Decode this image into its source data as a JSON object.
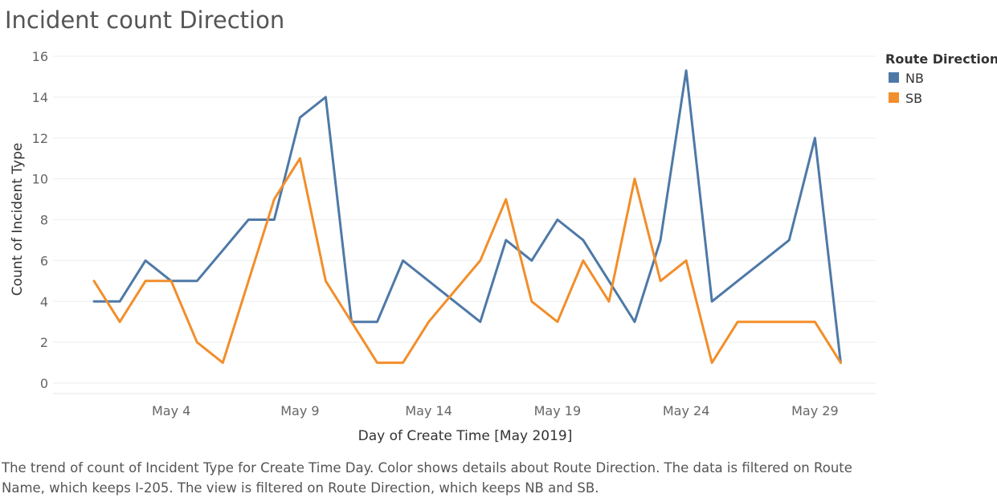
{
  "title": "Incident count Direction",
  "caption": "The trend of count of Incident Type for Create Time Day.  Color shows details about Route Direction. The data is filtered on Route Name, which keeps I-205. The view is filtered on Route Direction, which keeps NB and SB.",
  "chart_data": {
    "type": "line",
    "title": "Incident count Direction",
    "xlabel": "Day of Create Time [May 2019]",
    "ylabel": "Count of Incident Type",
    "x_ticks": [
      "May 4",
      "May 9",
      "May 14",
      "May 19",
      "May 24",
      "May 29"
    ],
    "y_ticks": [
      0,
      2,
      4,
      6,
      8,
      10,
      12,
      14,
      16
    ],
    "ylim": [
      0,
      16
    ],
    "x_days": [
      1,
      2,
      3,
      4,
      5,
      6,
      7,
      8,
      9,
      10,
      11,
      12,
      13,
      14,
      15,
      16,
      17,
      18,
      19,
      20,
      21,
      22,
      23,
      24,
      25,
      26,
      27,
      28,
      29,
      30
    ],
    "grid": true,
    "legend": {
      "title": "Route Direction",
      "position": "right"
    },
    "series": [
      {
        "name": "NB",
        "color": "#4e79a7",
        "values": [
          4,
          4,
          6,
          5,
          5,
          6.5,
          8,
          8,
          13,
          14,
          3,
          3,
          6,
          5,
          4,
          3,
          7,
          6,
          8,
          7,
          5,
          3,
          7,
          15.3,
          4,
          5,
          6,
          7,
          12,
          1
        ]
      },
      {
        "name": "SB",
        "color": "#f28e2b",
        "values": [
          5,
          3,
          5,
          5,
          2,
          1,
          5,
          9,
          11,
          5,
          3,
          1,
          1,
          3,
          4.5,
          6,
          9,
          4,
          3,
          6,
          4,
          10,
          5,
          6,
          1,
          3,
          3,
          3,
          3,
          1
        ]
      }
    ]
  }
}
